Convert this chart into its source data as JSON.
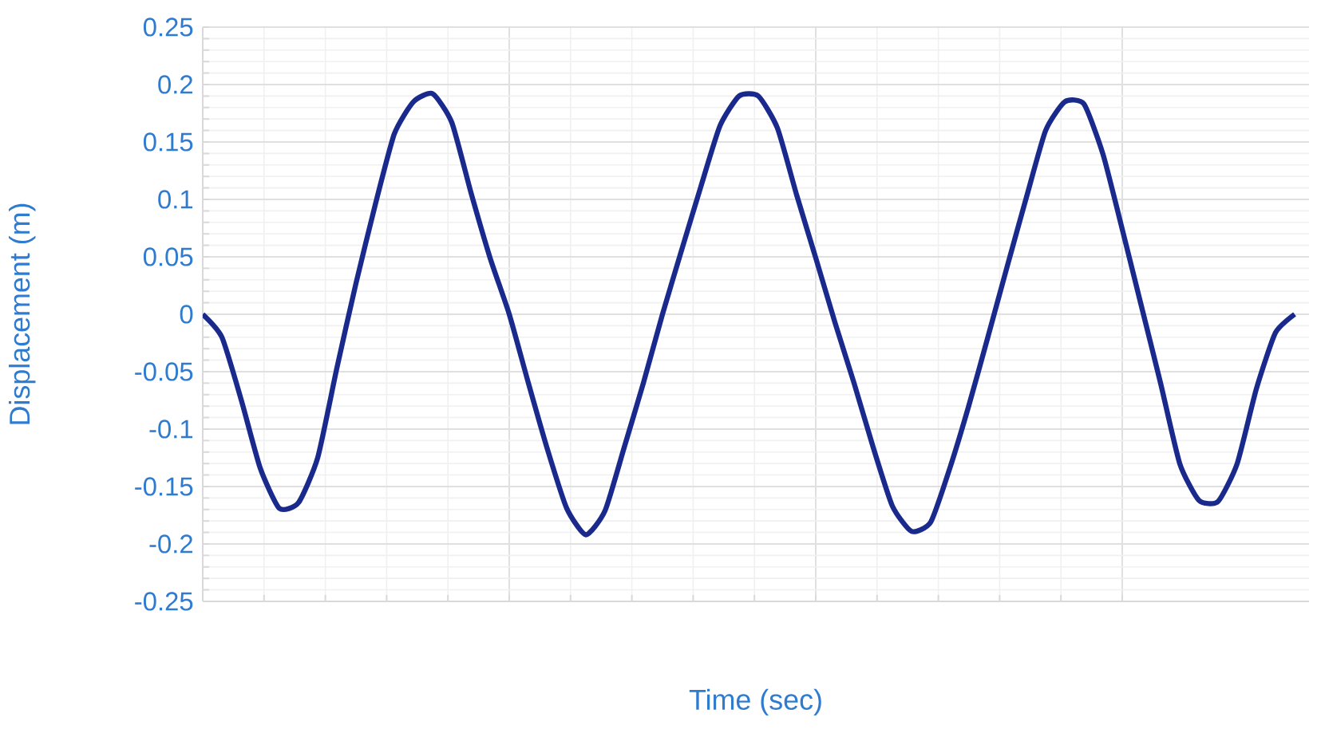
{
  "chart_data": {
    "type": "line",
    "xlabel": "Time (sec)",
    "ylabel": "Displacement (m)",
    "categories": [
      null,
      null,
      null,
      null,
      null,
      null,
      null,
      null,
      null,
      null,
      null,
      null,
      null,
      null,
      null,
      null,
      null,
      null,
      null,
      null,
      null,
      null,
      null,
      null,
      null,
      null,
      null,
      null,
      null,
      null,
      null,
      null,
      null,
      null,
      null,
      null,
      null,
      null,
      null,
      null,
      null,
      null,
      null,
      null,
      null,
      null,
      null,
      null,
      null,
      null,
      null,
      null,
      null,
      null,
      null,
      null,
      null,
      null
    ],
    "series": [
      {
        "color": "#1a2a8c",
        "values": [
          0,
          -0.02,
          -0.074,
          -0.134,
          -0.169,
          -0.164,
          -0.125,
          -0.047,
          0.027,
          0.095,
          0.157,
          0.185,
          0.192,
          0.167,
          0.106,
          0.049,
          0,
          -0.06,
          -0.118,
          -0.169,
          -0.192,
          -0.171,
          -0.116,
          -0.06,
          0,
          0.056,
          0.111,
          0.164,
          0.19,
          0.19,
          0.162,
          0.104,
          0.049,
          -0.007,
          -0.06,
          -0.116,
          -0.167,
          -0.189,
          -0.181,
          -0.134,
          -0.079,
          -0.019,
          0.042,
          0.102,
          0.16,
          0.185,
          0.183,
          0.139,
          0.074,
          0.007,
          -0.06,
          -0.13,
          -0.162,
          -0.163,
          -0.13,
          -0.065,
          -0.016,
          0
        ]
      }
    ],
    "ylim": [
      -0.25,
      0.25
    ],
    "yticks": [
      -0.25,
      -0.2,
      -0.15,
      -0.1,
      -0.05,
      0,
      0.05,
      0.1,
      0.15,
      0.2,
      0.25
    ],
    "grid": true,
    "marker": "none",
    "line_style": "solid"
  }
}
